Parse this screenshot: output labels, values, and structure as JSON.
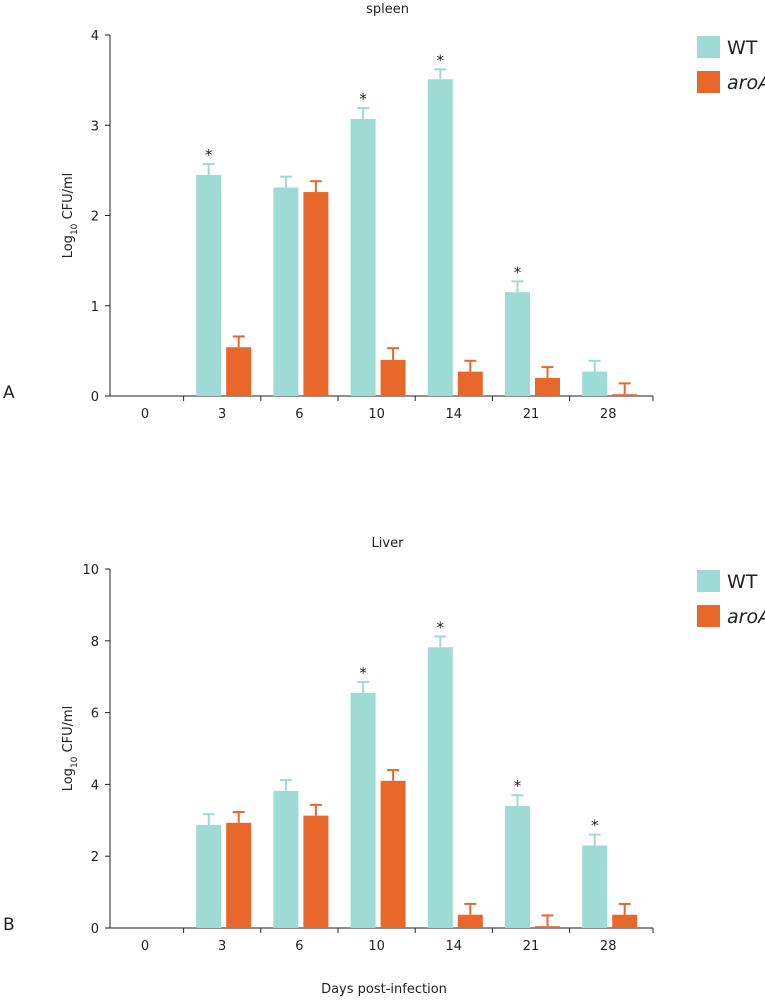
{
  "colors": {
    "wt": "#9edbd4",
    "aroA": "#e8682c",
    "axis": "#222222"
  },
  "xlabel": "Days post-infection",
  "chart_data": [
    {
      "type": "bar",
      "panel": "A",
      "title": "spleen",
      "ylabel_main": "Log",
      "ylabel_sub": "10",
      "ylabel_rest": "CFU/ml",
      "ylim": [
        0,
        4
      ],
      "yticks": [
        "0",
        "1",
        "2",
        "3",
        "4"
      ],
      "categories": [
        "0",
        "3",
        "6",
        "10",
        "14",
        "21",
        "28"
      ],
      "series": [
        {
          "name": "WT",
          "values": [
            0,
            2.45,
            2.31,
            3.07,
            3.51,
            1.15,
            0.27
          ],
          "errors": [
            0,
            0.12,
            0.12,
            0.12,
            0.11,
            0.12,
            0.12
          ]
        },
        {
          "name": "aroA",
          "values": [
            0,
            0.54,
            2.26,
            0.4,
            0.27,
            0.2,
            0.02
          ],
          "errors": [
            0,
            0.12,
            0.12,
            0.13,
            0.12,
            0.12,
            0.12
          ]
        }
      ],
      "significance": [
        {
          "category": "3",
          "label": "*"
        },
        {
          "category": "10",
          "label": "*"
        },
        {
          "category": "14",
          "label": "*"
        },
        {
          "category": "21",
          "label": "*"
        }
      ],
      "legend": [
        "WT",
        "aroA"
      ]
    },
    {
      "type": "bar",
      "panel": "B",
      "title": "Liver",
      "ylabel_main": "Log",
      "ylabel_sub": "10",
      "ylabel_rest": "CFU/ml",
      "ylim": [
        0,
        10
      ],
      "yticks": [
        "0",
        "2",
        "4",
        "6",
        "8",
        "10"
      ],
      "categories": [
        "0",
        "3",
        "6",
        "10",
        "14",
        "21",
        "28"
      ],
      "series": [
        {
          "name": "WT",
          "values": [
            0,
            2.87,
            3.82,
            6.55,
            7.82,
            3.4,
            2.3
          ],
          "errors": [
            0,
            0.3,
            0.3,
            0.3,
            0.3,
            0.3,
            0.3
          ]
        },
        {
          "name": "aroA",
          "values": [
            0,
            2.93,
            3.13,
            4.1,
            0.37,
            0.05,
            0.37
          ],
          "errors": [
            0,
            0.3,
            0.3,
            0.3,
            0.3,
            0.3,
            0.3
          ]
        }
      ],
      "significance": [
        {
          "category": "10",
          "label": "*"
        },
        {
          "category": "14",
          "label": "*"
        },
        {
          "category": "21",
          "label": "*"
        },
        {
          "category": "28",
          "label": "*"
        }
      ],
      "legend": [
        "WT",
        "aroA"
      ]
    }
  ]
}
